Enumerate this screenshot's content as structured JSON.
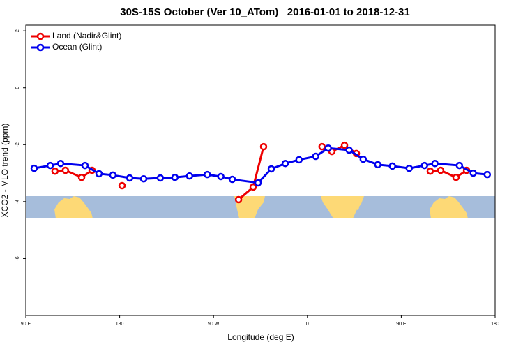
{
  "chart_data": {
    "type": "line",
    "title": "30S-15S October (Ver 10_ATom)   2016-01-01 to 2018-12-31",
    "x_label": "Longitude (deg E)",
    "y_label": "XCO2 - MLO trend (ppm)",
    "xlim": [
      90,
      540
    ],
    "ylim": [
      -8,
      2.2
    ],
    "xticks": [
      {
        "value": 90,
        "label": "90 E"
      },
      180,
      {
        "value": 270,
        "label": "90 W"
      },
      {
        "value": 360,
        "label": "0"
      },
      {
        "value": 450,
        "label": "90 E"
      },
      {
        "value": 540,
        "label": "180"
      }
    ],
    "yticks": [
      2,
      0,
      -2,
      -4,
      -6
    ],
    "legend": "top-left",
    "series": [
      {
        "name": "Land (Nadir&Glint)",
        "color": "#ee0000",
        "x": [
          118,
          128,
          143.5,
          153.5,
          null,
          182.3,
          null,
          294,
          308,
          318,
          null,
          374,
          383.5,
          395.6,
          407,
          null,
          477.8,
          487.8,
          502.5,
          512.6
        ],
        "values": [
          -2.93,
          -2.9,
          -3.15,
          -2.9,
          null,
          -3.44,
          null,
          -3.93,
          -3.49,
          -2.07,
          null,
          -2.07,
          -2.24,
          -2.02,
          -2.31,
          null,
          -2.93,
          -2.9,
          -3.15,
          -2.9
        ]
      },
      {
        "name": "Ocean (Glint)",
        "color": "#0000ee",
        "x": [
          98,
          113.4,
          123.4,
          146.8,
          160.2,
          173.5,
          189.6,
          203,
          219,
          233,
          247,
          264,
          277,
          288,
          312.7,
          325.4,
          338.8,
          352,
          368,
          380,
          400,
          413.5,
          427.5,
          441.5,
          457.6,
          472.3,
          482.3,
          505.8,
          519,
          532.5
        ],
        "values": [
          -2.83,
          -2.73,
          -2.66,
          -2.73,
          -3.02,
          -3.07,
          -3.17,
          -3.2,
          -3.17,
          -3.15,
          -3.1,
          -3.05,
          -3.12,
          -3.22,
          -3.34,
          -2.85,
          -2.66,
          -2.53,
          -2.41,
          -2.12,
          -2.19,
          -2.51,
          -2.7,
          -2.75,
          -2.83,
          -2.73,
          -2.66,
          -2.73,
          -3.0,
          -3.05
        ]
      }
    ]
  }
}
